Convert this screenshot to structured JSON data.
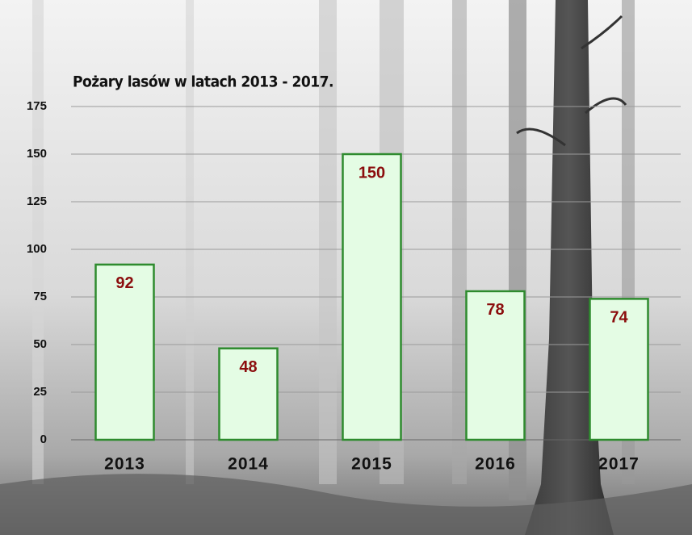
{
  "chart_data": {
    "type": "bar",
    "title": "Pożary lasów  w latach 2013 - 2017.",
    "categories": [
      "2013",
      "2014",
      "2015",
      "2016",
      "2017"
    ],
    "values": [
      92,
      48,
      150,
      78,
      74
    ],
    "color": "#e4fce4",
    "edge_color": "#2e8b2e",
    "ylim": [
      0,
      175
    ],
    "yticks": [
      0,
      25,
      50,
      75,
      100,
      125,
      150,
      175
    ],
    "grid": true
  }
}
